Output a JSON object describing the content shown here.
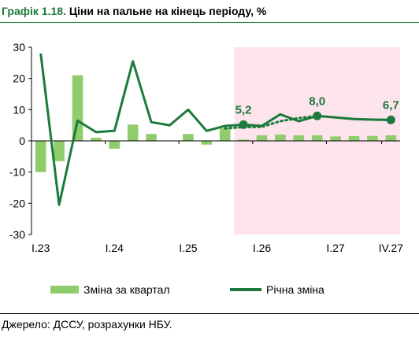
{
  "title": {
    "number": "Графік 1.18.",
    "text": "Ціни на пальне на кінець періоду, %"
  },
  "source": "Джерело: ДССУ, розрахунки НБУ.",
  "colors": {
    "bar": "#8fcc6b",
    "line": "#1b7a3c",
    "forecast_bg": "#fde3ec",
    "label": "#1b7a3c"
  },
  "chart_data": {
    "type": "bar+line",
    "ylim": [
      -30,
      30
    ],
    "yticks": [
      "30",
      "20",
      "10",
      "0",
      "-10",
      "-20",
      "-30"
    ],
    "xtick_labels": [
      {
        "label": "I.23",
        "at": 0
      },
      {
        "label": "I.24",
        "at": 4
      },
      {
        "label": "I.25",
        "at": 8
      },
      {
        "label": "I.26",
        "at": 12
      },
      {
        "label": "I.27",
        "at": 16
      },
      {
        "label": "IV.27",
        "at": 19
      }
    ],
    "periods": 20,
    "forecast_start_index": 11,
    "series": [
      {
        "name": "Зміна за квартал",
        "kind": "bar",
        "values": [
          -10,
          -6.5,
          21,
          1,
          -2.5,
          5.2,
          2.2,
          0,
          2.2,
          -1.2,
          4,
          0.4,
          1.8,
          2,
          1.8,
          1.8,
          1.4,
          1.5,
          1.6,
          1.8
        ]
      },
      {
        "name": "Річна зміна",
        "kind": "line",
        "values": [
          28,
          -20.5,
          6.5,
          2.8,
          3.2,
          25.5,
          6,
          5,
          10,
          3.2,
          4.8,
          5.2,
          4.8,
          8.5,
          6.3,
          8.0,
          7.5,
          7,
          6.8,
          6.7
        ]
      }
    ],
    "dotted_line_values": {
      "from_index": 10,
      "values": [
        4.0,
        4.4,
        4.5,
        6.3,
        7.3,
        8.0,
        7.5,
        7,
        6.8,
        6.7
      ]
    },
    "annotations": [
      {
        "index": 11,
        "text": "5,2"
      },
      {
        "index": 15,
        "text": "8,0"
      },
      {
        "index": 19,
        "text": "6,7"
      }
    ]
  }
}
